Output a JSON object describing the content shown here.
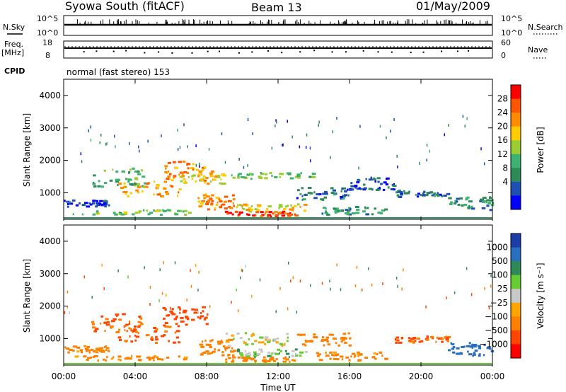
{
  "header": {
    "station": "Syowa South (fitACF)",
    "beam": "Beam 13",
    "date": "01/May/2009"
  },
  "strips": {
    "nsky_label": "N.Sky",
    "nsky_ticks": [
      "10^5",
      "10^0"
    ],
    "nsearch_label": "N.Search",
    "nsearch_ticks": [
      "10^5",
      "10^0"
    ],
    "freq_label_1": "Freq.",
    "freq_label_2": "[MHz]",
    "freq_ticks": [
      "18",
      "8"
    ],
    "nave_label": "Nave",
    "nave_ticks": [
      "60",
      "0"
    ],
    "cpid_label": "CPID",
    "cpid_text": "normal (fast stereo) 153"
  },
  "panels": {
    "power": {
      "ylabel": "Slant Range [km]",
      "colorbar_label": "Power [dB]",
      "colorbar_ticks": [
        "28",
        "24",
        "20",
        "16",
        "12",
        "8",
        "4"
      ],
      "colors": [
        "#ff0000",
        "#ff5500",
        "#ff8c00",
        "#ffcc00",
        "#9acd32",
        "#3cb371",
        "#2e8b57",
        "#1e50b4",
        "#0000ff"
      ]
    },
    "velocity": {
      "ylabel": "Slant Range [km]",
      "colorbar_label": "Velocity [m s⁻¹]",
      "colorbar_ticks": [
        "1000",
        "500",
        "100",
        "25",
        "−25",
        "−100",
        "−500",
        "−1000"
      ],
      "colors": [
        "#1c3ca8",
        "#2a6ec0",
        "#2e8b57",
        "#66cc33",
        "#c8c8c8",
        "#ffa500",
        "#ff8000",
        "#ff4500",
        "#ff0000"
      ]
    }
  },
  "xaxis": {
    "title": "Time UT",
    "ticks": [
      "00:00",
      "04:00",
      "08:00",
      "12:00",
      "16:00",
      "20:00",
      "00:00"
    ]
  },
  "chart_data": [
    {
      "type": "heatmap",
      "name": "power",
      "xlabel": "Time UT",
      "ylabel": "Slant Range [km]",
      "xlim": [
        0,
        24
      ],
      "ylim": [
        180,
        4500
      ],
      "y_ticks": [
        1000,
        2000,
        3000,
        4000
      ],
      "colorbar": {
        "label": "Power [dB]",
        "range": [
          0,
          30
        ],
        "ticks": [
          4,
          8,
          12,
          16,
          20,
          24,
          28
        ]
      },
      "regions": [
        {
          "t": [
            0.0,
            2.5
          ],
          "r": [
            600,
            800
          ],
          "value": 8
        },
        {
          "t": [
            0.5,
            7.0
          ],
          "r": [
            350,
            500
          ],
          "value": 16
        },
        {
          "t": [
            1.5,
            4.5
          ],
          "r": [
            1200,
            1800
          ],
          "value": 14
        },
        {
          "t": [
            3.0,
            6.5
          ],
          "r": [
            900,
            1400
          ],
          "value": 22
        },
        {
          "t": [
            5.5,
            8.0
          ],
          "r": [
            1400,
            2000
          ],
          "value": 24
        },
        {
          "t": [
            6.5,
            9.0
          ],
          "r": [
            1300,
            1700
          ],
          "value": 20
        },
        {
          "t": [
            7.5,
            9.5
          ],
          "r": [
            500,
            1000
          ],
          "value": 24
        },
        {
          "t": [
            9.0,
            13.0
          ],
          "r": [
            300,
            450
          ],
          "value": 28
        },
        {
          "t": [
            9.5,
            13.5
          ],
          "r": [
            450,
            700
          ],
          "value": 20
        },
        {
          "t": [
            9.0,
            14.0
          ],
          "r": [
            1450,
            1650
          ],
          "value": 16
        },
        {
          "t": [
            13.0,
            16.0
          ],
          "r": [
            800,
            1200
          ],
          "value": 10
        },
        {
          "t": [
            14.0,
            18.0
          ],
          "r": [
            350,
            600
          ],
          "value": 12
        },
        {
          "t": [
            16.0,
            18.5
          ],
          "r": [
            1100,
            1500
          ],
          "value": 8
        },
        {
          "t": [
            18.5,
            21.5
          ],
          "r": [
            900,
            1100
          ],
          "value": 10
        },
        {
          "t": [
            21.5,
            24.0
          ],
          "r": [
            500,
            900
          ],
          "value": 12
        }
      ]
    },
    {
      "type": "heatmap",
      "name": "velocity",
      "xlabel": "Time UT",
      "ylabel": "Slant Range [km]",
      "xlim": [
        0,
        24
      ],
      "ylim": [
        180,
        4500
      ],
      "y_ticks": [
        1000,
        2000,
        3000,
        4000
      ],
      "colorbar": {
        "label": "Velocity [m s⁻¹]",
        "ticks": [
          1000,
          500,
          100,
          25,
          -25,
          -100,
          -500,
          -1000
        ]
      },
      "regions": [
        {
          "t": [
            0.0,
            2.5
          ],
          "r": [
            600,
            800
          ],
          "value": -100
        },
        {
          "t": [
            0.5,
            7.0
          ],
          "r": [
            350,
            500
          ],
          "value": -100
        },
        {
          "t": [
            1.5,
            4.5
          ],
          "r": [
            1200,
            1800
          ],
          "value": -300
        },
        {
          "t": [
            3.0,
            6.5
          ],
          "r": [
            900,
            1400
          ],
          "value": -300
        },
        {
          "t": [
            5.5,
            8.0
          ],
          "r": [
            1400,
            2000
          ],
          "value": -600
        },
        {
          "t": [
            7.5,
            9.5
          ],
          "r": [
            500,
            1000
          ],
          "value": -150
        },
        {
          "t": [
            9.0,
            12.5
          ],
          "r": [
            800,
            1200
          ],
          "value": 0
        },
        {
          "t": [
            9.0,
            13.0
          ],
          "r": [
            300,
            450
          ],
          "value": -150
        },
        {
          "t": [
            9.5,
            13.5
          ],
          "r": [
            450,
            700
          ],
          "value": 50
        },
        {
          "t": [
            13.0,
            16.0
          ],
          "r": [
            800,
            1200
          ],
          "value": -150
        },
        {
          "t": [
            14.0,
            18.0
          ],
          "r": [
            350,
            600
          ],
          "value": -100
        },
        {
          "t": [
            18.5,
            21.5
          ],
          "r": [
            900,
            1100
          ],
          "value": -300
        },
        {
          "t": [
            21.5,
            24.0
          ],
          "r": [
            500,
            900
          ],
          "value": 600
        }
      ]
    }
  ]
}
